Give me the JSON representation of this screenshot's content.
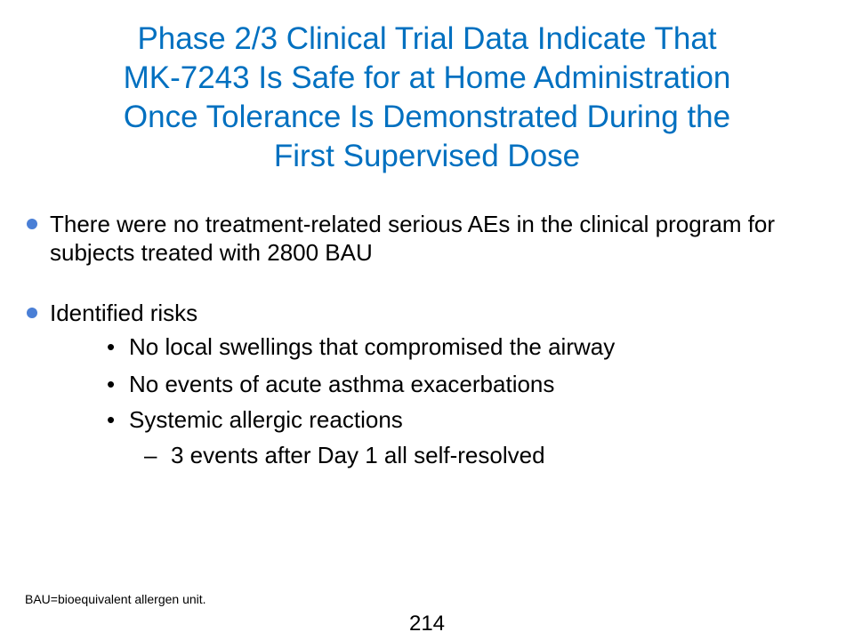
{
  "slide": {
    "title_lines": [
      "Phase 2/3 Clinical Trial Data Indicate That",
      "MK-7243 Is Safe for at Home Administration",
      "Once Tolerance Is Demonstrated During the",
      "First Supervised Dose"
    ],
    "title_color": "#0070c0",
    "bullet_color": "#4a7fd6",
    "bullets": [
      {
        "text": "There were no treatment-related serious AEs in the clinical program for subjects treated with 2800 BAU"
      },
      {
        "text": "Identified risks",
        "sub_items": [
          {
            "marker": "•",
            "text": "No local swellings that compromised the airway"
          },
          {
            "marker": "•",
            "text": "No events of acute asthma exacerbations"
          },
          {
            "marker": "•",
            "text": "Systemic allergic reactions",
            "sub_items": [
              {
                "marker": "–",
                "text": "3 events after Day 1 all self-resolved"
              }
            ]
          }
        ]
      }
    ],
    "footnote": "BAU=bioequivalent allergen unit.",
    "page_number": "214"
  }
}
